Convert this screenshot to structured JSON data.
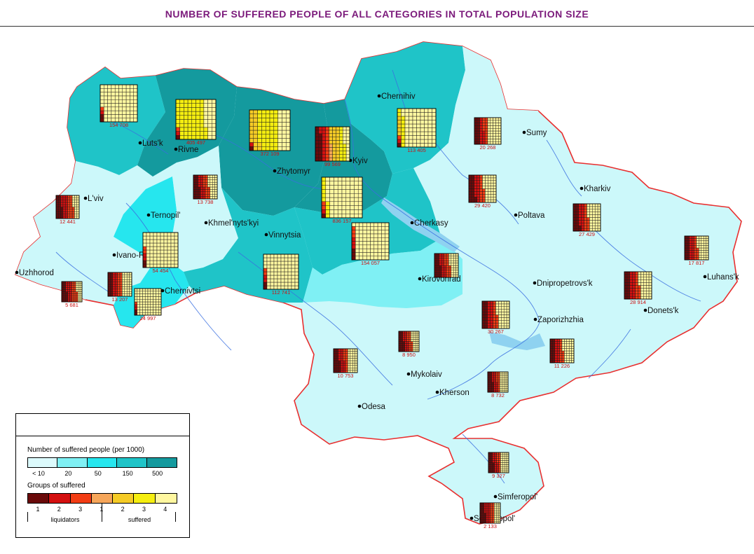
{
  "title": "NUMBER OF SUFFERED PEOPLE OF ALL CATEGORIES IN TOTAL POPULATION SIZE",
  "colors": {
    "border_red": "#e83030",
    "river": "#3a6fe0",
    "density": [
      "#dcfafc",
      "#7ff0f4",
      "#26e6ee",
      "#1fc4c8",
      "#149a9e"
    ],
    "groups": [
      "#6a0a0a",
      "#d41010",
      "#f23c14",
      "#f6a65a",
      "#f5cb26",
      "#f5ee10",
      "#fff7a0"
    ]
  },
  "cities": [
    {
      "name": "Chernihiv",
      "dot": [
        541,
        137
      ]
    },
    {
      "name": "Sumy",
      "dot": [
        748,
        189
      ]
    },
    {
      "name": "Lutsk",
      "label": "Luts'k",
      "dot": [
        200,
        204
      ]
    },
    {
      "name": "Rivne",
      "dot": [
        251,
        213
      ]
    },
    {
      "name": "Kyiv",
      "dot": [
        500,
        229
      ]
    },
    {
      "name": "Zhytomyr",
      "dot": [
        392,
        244
      ]
    },
    {
      "name": "Kharkiv",
      "dot": [
        830,
        269
      ]
    },
    {
      "name": "Lviv",
      "label": "L'viv",
      "dot": [
        122,
        283
      ]
    },
    {
      "name": "Ternopil",
      "label": "Ternopil'",
      "dot": [
        212,
        307
      ]
    },
    {
      "name": "Poltava",
      "dot": [
        736,
        307
      ]
    },
    {
      "name": "Khmelnytskyi",
      "label": "Khmel'nyts'kyi",
      "dot": [
        294,
        318
      ]
    },
    {
      "name": "Cherkasy",
      "dot": [
        588,
        318
      ]
    },
    {
      "name": "Vinnytsia",
      "dot": [
        380,
        335
      ]
    },
    {
      "name": "Ivano-Frankivsk",
      "label": "Ivano-Frankivs'k",
      "dot": [
        163,
        364
      ]
    },
    {
      "name": "Uzhhorod",
      "dot": [
        24,
        389
      ]
    },
    {
      "name": "Kirovohrad",
      "dot": [
        599,
        398
      ]
    },
    {
      "name": "Luhansk",
      "label": "Luhans'k",
      "dot": [
        1006,
        395
      ]
    },
    {
      "name": "Dnipropetrovsk",
      "label": "Dnipropetrovs'k",
      "dot": [
        763,
        404
      ]
    },
    {
      "name": "Chernivtsi",
      "dot": [
        232,
        415
      ]
    },
    {
      "name": "Donetsk",
      "label": "Donets'k",
      "dot": [
        921,
        443
      ]
    },
    {
      "name": "Zaporizhzhia",
      "dot": [
        764,
        456
      ]
    },
    {
      "name": "Mykolaiv",
      "dot": [
        583,
        534
      ]
    },
    {
      "name": "Kherson",
      "dot": [
        624,
        560
      ]
    },
    {
      "name": "Odesa",
      "dot": [
        513,
        580
      ]
    },
    {
      "name": "Simferopol",
      "label": "Simferopol'",
      "dot": [
        707,
        709
      ]
    },
    {
      "name": "Sevastopol",
      "label": "Sevastopol'",
      "dot": [
        673,
        740
      ]
    }
  ],
  "oblasts": [
    {
      "region": "Volyn",
      "value": "154 708",
      "counts": [
        2,
        1,
        1,
        0,
        0,
        0,
        96
      ],
      "cell": 5.3,
      "pos": [
        143,
        121
      ]
    },
    {
      "region": "Rivne",
      "value": "405 497",
      "counts": [
        1,
        1,
        1,
        0,
        0,
        70,
        27
      ],
      "cell": 5.7,
      "pos": [
        251,
        142
      ]
    },
    {
      "region": "Zhytomyr",
      "value": "372 109",
      "counts": [
        1,
        1,
        0,
        0,
        20,
        48,
        30
      ],
      "cell": 5.8,
      "pos": [
        356,
        157
      ]
    },
    {
      "region": "Kyiv city",
      "value": "99 569",
      "counts": [
        18,
        12,
        10,
        5,
        25,
        15,
        15
      ],
      "cell": 4.9,
      "pos": [
        450,
        181
      ]
    },
    {
      "region": "Chernihiv",
      "value": "113 405",
      "counts": [
        1,
        1,
        1,
        0,
        5,
        10,
        82
      ],
      "cell": 5.5,
      "pos": [
        567,
        155
      ]
    },
    {
      "region": "Sumy",
      "value": "20 268",
      "counts": [
        20,
        15,
        15,
        0,
        0,
        0,
        50
      ],
      "cell": 3.8,
      "pos": [
        677,
        168
      ]
    },
    {
      "region": "Kyiv oblast",
      "value": "836 157",
      "counts": [
        1,
        1,
        2,
        0,
        0,
        10,
        86
      ],
      "cell": 5.8,
      "pos": [
        459,
        253
      ]
    },
    {
      "region": "Lviv",
      "value": "12 441",
      "counts": [
        25,
        25,
        25,
        0,
        0,
        0,
        25
      ],
      "cell": 3.3,
      "pos": [
        80,
        279
      ]
    },
    {
      "region": "Ternopil",
      "value": "13 738",
      "counts": [
        25,
        20,
        20,
        0,
        0,
        0,
        35
      ],
      "cell": 3.4,
      "pos": [
        276,
        250
      ]
    },
    {
      "region": "Poltava",
      "value": "29 420",
      "counts": [
        22,
        18,
        15,
        0,
        0,
        0,
        45
      ],
      "cell": 3.9,
      "pos": [
        669,
        250
      ]
    },
    {
      "region": "Kharkiv",
      "value": "27 429",
      "counts": [
        22,
        18,
        15,
        0,
        0,
        0,
        45
      ],
      "cell": 3.9,
      "pos": [
        818,
        291
      ]
    },
    {
      "region": "Khmelnytskyi",
      "value": "54 454",
      "counts": [
        2,
        2,
        2,
        0,
        0,
        0,
        94
      ],
      "cell": 5.0,
      "pos": [
        204,
        332
      ]
    },
    {
      "region": "Cherkasy",
      "value": "154 057",
      "counts": [
        3,
        3,
        3,
        0,
        0,
        0,
        91
      ],
      "cell": 5.3,
      "pos": [
        502,
        318
      ]
    },
    {
      "region": "Vinnytsia",
      "value": "112 741",
      "counts": [
        2,
        2,
        2,
        0,
        0,
        0,
        94
      ],
      "cell": 5.0,
      "pos": [
        376,
        363
      ]
    },
    {
      "region": "Luhansk",
      "value": "17 817",
      "counts": [
        20,
        20,
        15,
        0,
        0,
        0,
        45
      ],
      "cell": 3.4,
      "pos": [
        977,
        337
      ]
    },
    {
      "region": "Kirovohrad",
      "value": "",
      "counts": [
        25,
        20,
        20,
        0,
        0,
        0,
        35
      ],
      "cell": 3.4,
      "pos": [
        620,
        362
      ]
    },
    {
      "region": "Zakarpattia",
      "value": "5 681",
      "counts": [
        25,
        25,
        25,
        0,
        0,
        0,
        25
      ],
      "cell": 2.9,
      "pos": [
        88,
        402
      ]
    },
    {
      "region": "Ivano-Frankivsk",
      "value": "13 207",
      "counts": [
        20,
        20,
        20,
        0,
        0,
        0,
        40
      ],
      "cell": 3.4,
      "pos": [
        154,
        389
      ]
    },
    {
      "region": "Chernivtsi",
      "value": "24 997",
      "counts": [
        2,
        2,
        1,
        0,
        0,
        0,
        95
      ],
      "cell": 3.8,
      "pos": [
        192,
        412
      ]
    },
    {
      "region": "Donetsk",
      "value": "28 914",
      "counts": [
        20,
        20,
        15,
        0,
        0,
        0,
        45
      ],
      "cell": 3.9,
      "pos": [
        891,
        388
      ]
    },
    {
      "region": "Dnipropetrovsk",
      "value": "30 267",
      "counts": [
        20,
        20,
        15,
        0,
        0,
        0,
        45
      ],
      "cell": 3.9,
      "pos": [
        688,
        430
      ]
    },
    {
      "region": "Zaporizhzhia",
      "value": "11 226",
      "counts": [
        20,
        20,
        15,
        0,
        0,
        0,
        45
      ],
      "cell": 3.4,
      "pos": [
        785,
        484
      ]
    },
    {
      "region": "Mykolaiv",
      "value": "8 950",
      "counts": [
        25,
        20,
        20,
        0,
        0,
        0,
        35
      ],
      "cell": 2.9,
      "pos": [
        569,
        473
      ]
    },
    {
      "region": "Odesa",
      "value": "10 753",
      "counts": [
        25,
        20,
        15,
        0,
        0,
        0,
        40
      ],
      "cell": 3.4,
      "pos": [
        476,
        498
      ]
    },
    {
      "region": "Kherson",
      "value": "8 732",
      "counts": [
        25,
        20,
        15,
        0,
        0,
        0,
        40
      ],
      "cell": 2.9,
      "pos": [
        696,
        531
      ]
    },
    {
      "region": "Crimea",
      "value": "9 327",
      "counts": [
        25,
        20,
        15,
        0,
        0,
        0,
        40
      ],
      "cell": 2.9,
      "pos": [
        697,
        646
      ]
    },
    {
      "region": "Sevastopol",
      "value": "2 133",
      "counts": [
        25,
        25,
        20,
        0,
        0,
        0,
        30
      ],
      "cell": 2.9,
      "pos": [
        685,
        718
      ]
    }
  ],
  "legend": {
    "density_title": "Number of suffered people (per 1000)",
    "density_ticks": [
      "< 10",
      "20",
      "50",
      "150",
      "500"
    ],
    "groups_title": "Groups of suffered",
    "group_numbers": [
      "1",
      "2",
      "3",
      "1",
      "2",
      "3",
      "4"
    ],
    "liquidators_label": "liquidators",
    "suffered_label": "suffered"
  }
}
